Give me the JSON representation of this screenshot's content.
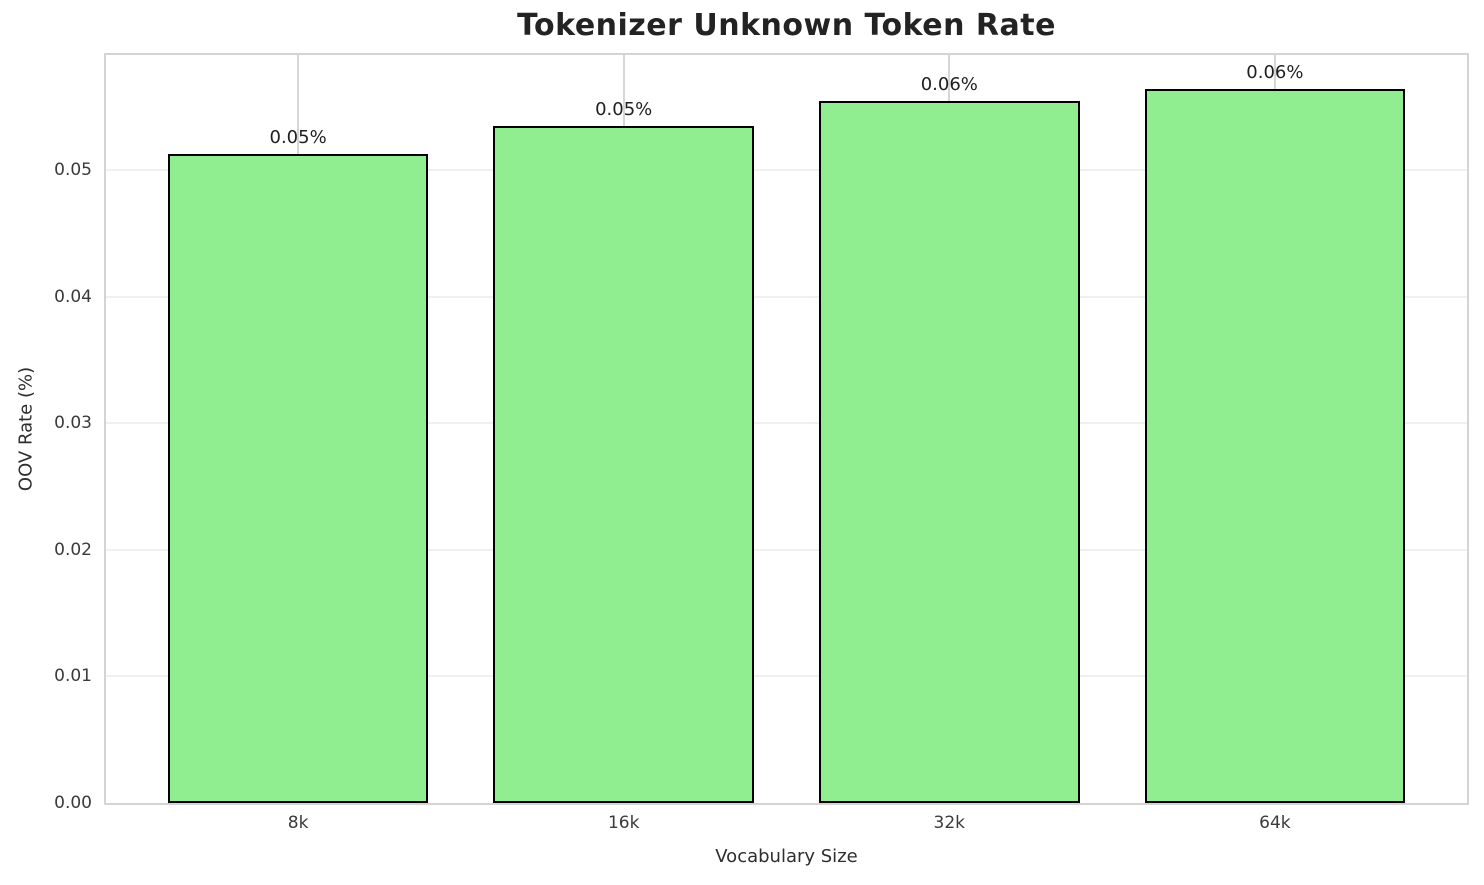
{
  "chart_data": {
    "type": "bar",
    "title": "Tokenizer Unknown Token Rate",
    "xlabel": "Vocabulary Size",
    "ylabel": "OOV Rate (%)",
    "categories": [
      "8k",
      "16k",
      "32k",
      "64k"
    ],
    "values": [
      0.0513,
      0.0535,
      0.0555,
      0.0564
    ],
    "bar_labels": [
      "0.05%",
      "0.05%",
      "0.06%",
      "0.06%"
    ],
    "ylim": [
      0,
      0.0591
    ],
    "xlim": [
      -0.59,
      3.59
    ],
    "bar_width_units": 0.8,
    "yticks": [
      {
        "value": 0.0,
        "label": "0.00"
      },
      {
        "value": 0.01,
        "label": "0.01"
      },
      {
        "value": 0.02,
        "label": "0.02"
      },
      {
        "value": 0.03,
        "label": "0.03"
      },
      {
        "value": 0.04,
        "label": "0.04"
      },
      {
        "value": 0.05,
        "label": "0.05"
      }
    ],
    "grid": true,
    "legend": null,
    "colors": {
      "bar_fill": "#90EE90",
      "bar_edge": "#000000",
      "grid_horizontal": "#f0f0f0",
      "grid_vertical": "#d6d6d6",
      "spine": "#d4d4d4",
      "title_text": "#232323",
      "tick_text": "#3a3a3a"
    }
  }
}
